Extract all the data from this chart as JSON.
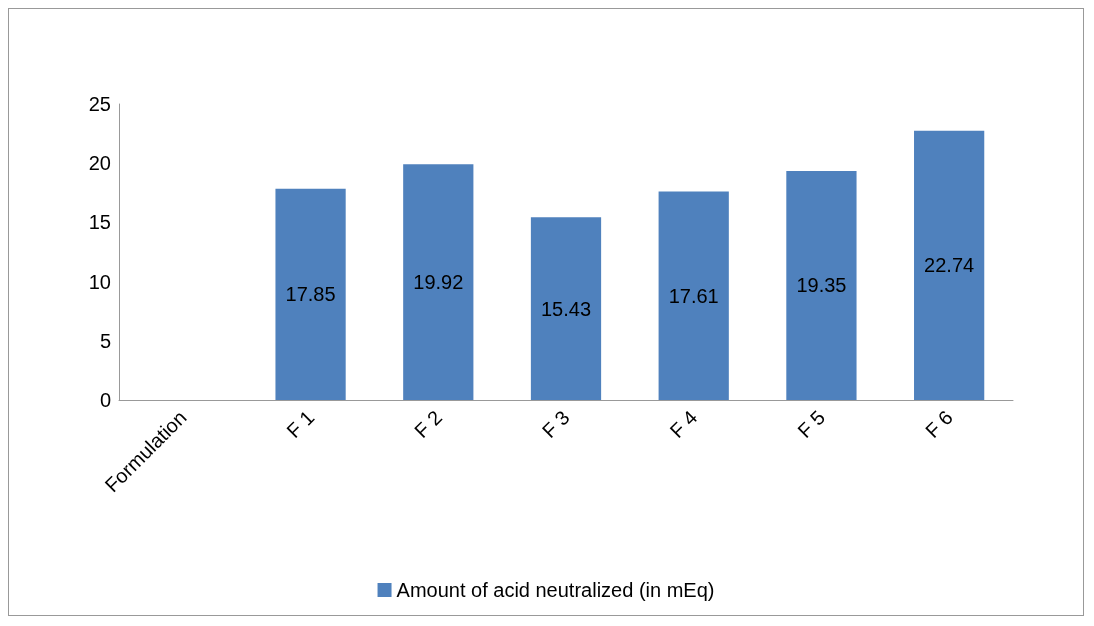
{
  "chart_data": {
    "type": "bar",
    "categories": [
      "Formulation",
      "F 1",
      "F 2",
      "F 3",
      "F 4",
      "F 5",
      "F 6"
    ],
    "series": [
      {
        "name": "Amount of acid neutralized (in mEq)",
        "color": "#4f81bd",
        "values": [
          null,
          17.85,
          19.92,
          15.43,
          17.61,
          19.35,
          22.74
        ]
      }
    ],
    "ylim": [
      0,
      25
    ],
    "yticks": [
      0,
      5,
      10,
      15,
      20,
      25
    ],
    "grid": false,
    "legend": "bottom",
    "data_labels": true
  }
}
